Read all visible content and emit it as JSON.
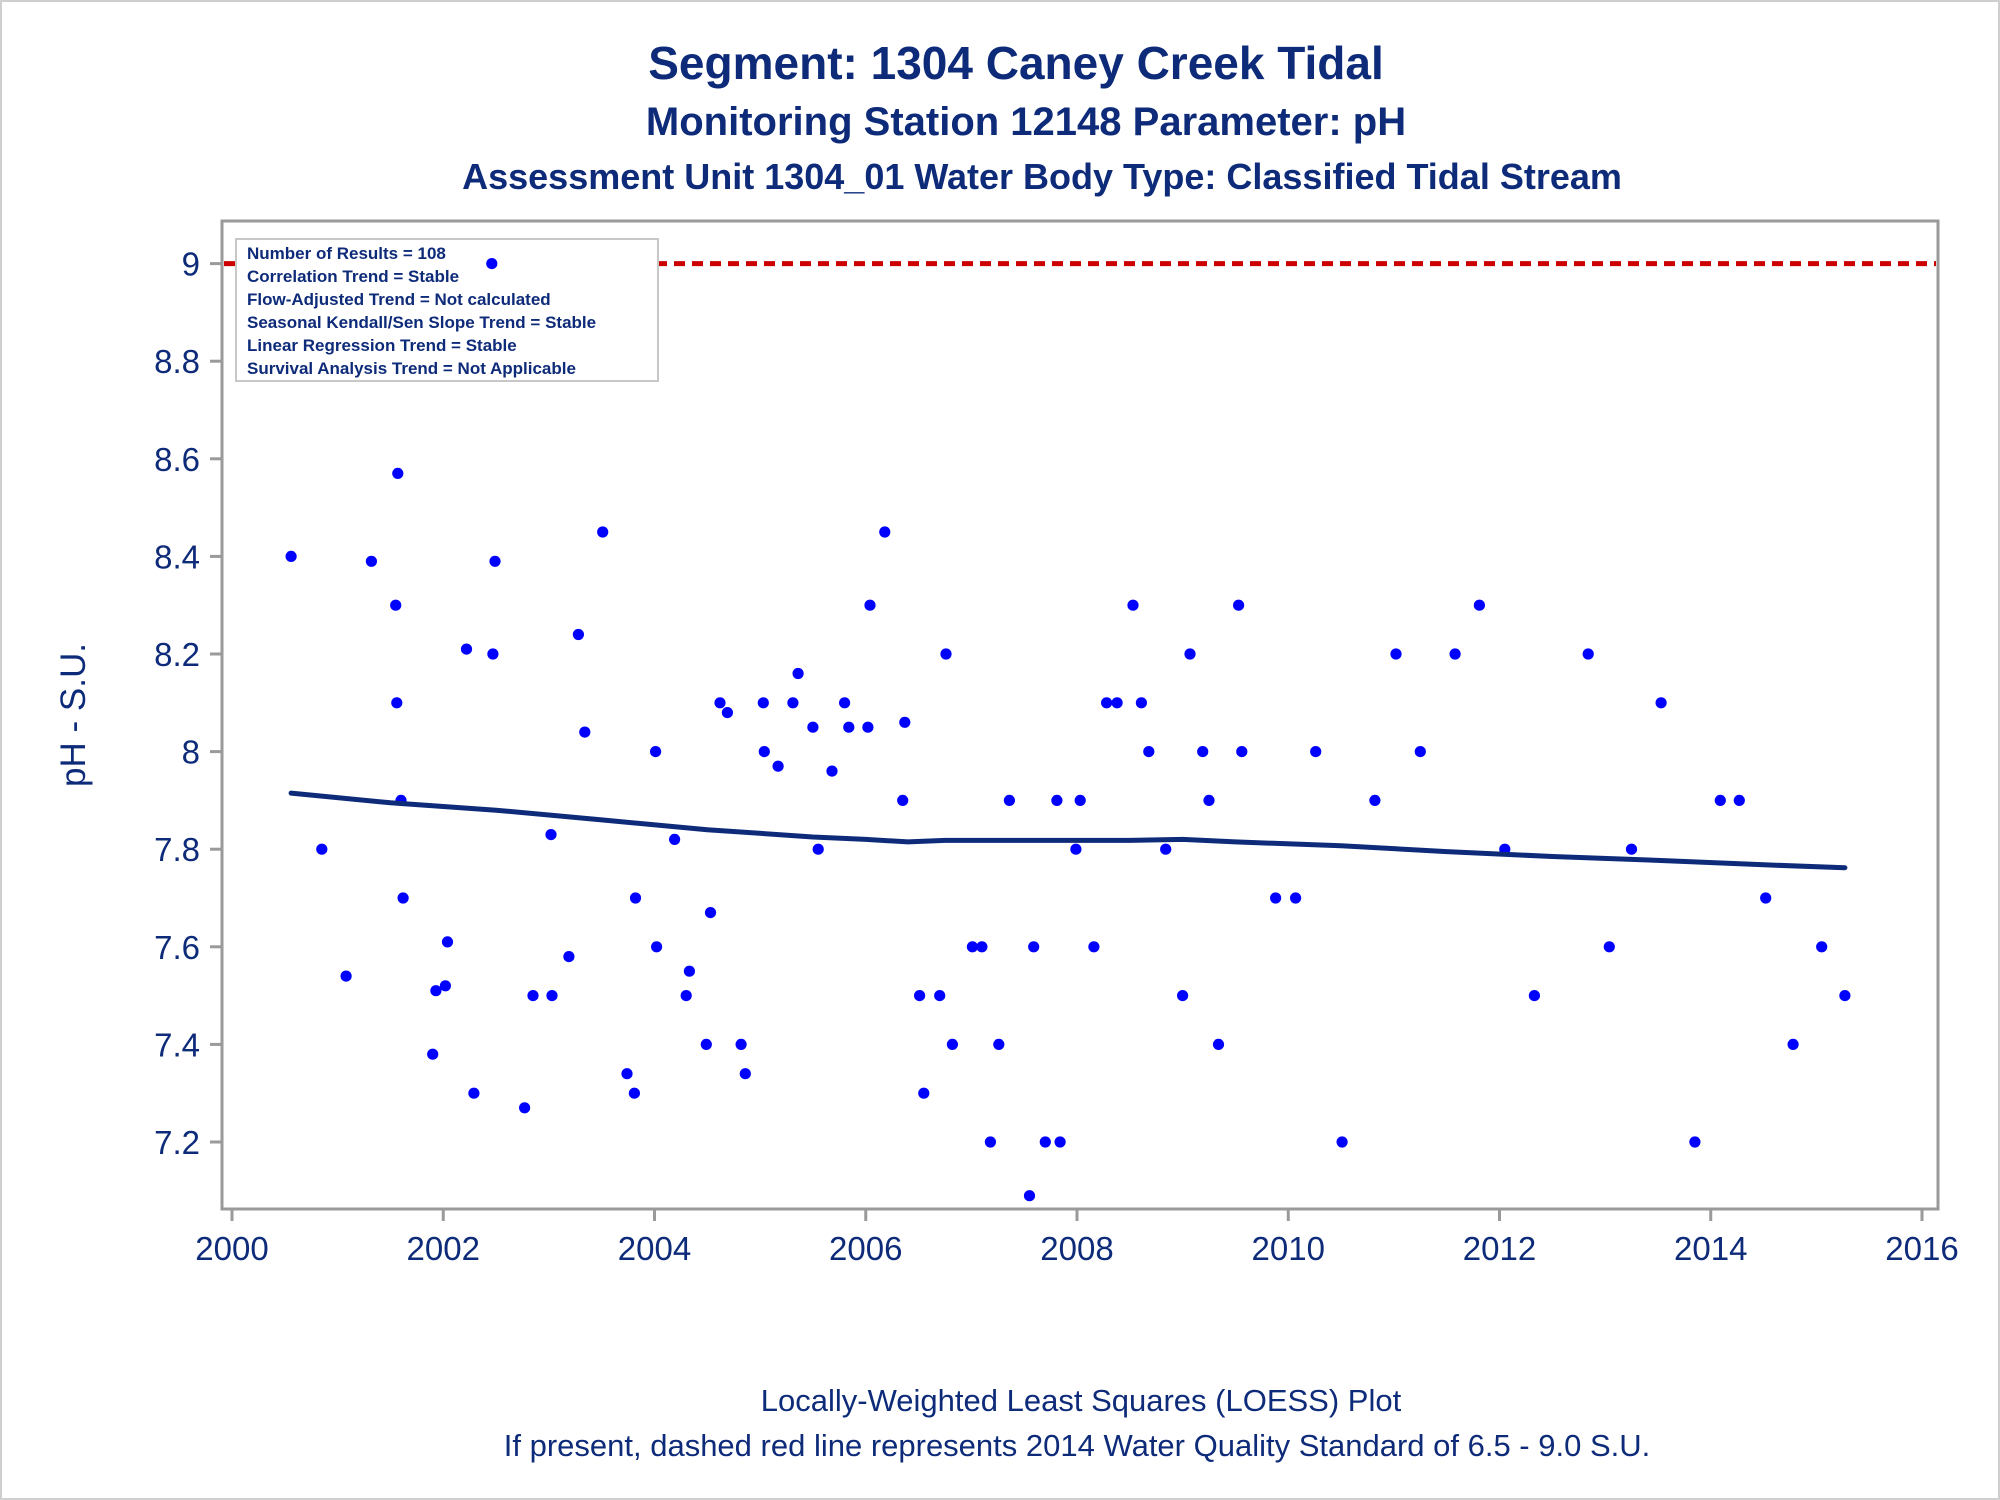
{
  "title": "Segment: 1304  Caney Creek Tidal",
  "subtitle": "Monitoring Station 12148 Parameter: pH",
  "subtitle2": "Assessment Unit 1304_01   Water Body Type: Classified Tidal Stream",
  "footnotes": [
    "Locally-Weighted Least Squares (LOESS) Plot",
    "If present, dashed red line represents 2014 Water Quality Standard of 6.5 - 9.0 S.U."
  ],
  "chart_data": {
    "type": "scatter",
    "ylabel": "pH - S.U.",
    "xlabel": "",
    "xlim": [
      2000,
      2016
    ],
    "ylim": [
      7.09,
      9.0
    ],
    "xticks": [
      2000,
      2002,
      2004,
      2006,
      2008,
      2010,
      2012,
      2014,
      2016
    ],
    "yticks": [
      7.2,
      7.4,
      7.6,
      7.8,
      8,
      8.2,
      8.4,
      8.6,
      8.8,
      9
    ],
    "grid": false,
    "reference_line": {
      "y": 9.0,
      "style": "dashed",
      "color": "#cc0000"
    },
    "annotations": [
      "Number of Results = 108",
      "Correlation Trend = Stable",
      "Flow-Adjusted Trend = Not calculated",
      "Seasonal Kendall/Sen Slope Trend = Stable",
      "Linear Regression Trend = Stable",
      "Survival Analysis Trend = Not Applicable"
    ],
    "annotation_placement": "top-left",
    "colors": {
      "points": "#0000ff",
      "loess": "#0e2b7a",
      "text": "#0e2b7a",
      "axis": "#9a9a9a"
    },
    "points": {
      "x": [
        2000.56,
        2000.85,
        2001.08,
        2001.32,
        2001.55,
        2001.56,
        2001.57,
        2001.6,
        2001.62,
        2001.9,
        2001.93,
        2002.02,
        2002.04,
        2002.22,
        2002.29,
        2002.46,
        2002.47,
        2002.49,
        2002.77,
        2002.85,
        2003.02,
        2003.03,
        2003.19,
        2003.28,
        2003.34,
        2003.51,
        2003.74,
        2003.81,
        2003.82,
        2004.01,
        2004.02,
        2004.19,
        2004.3,
        2004.33,
        2004.49,
        2004.53,
        2004.62,
        2004.69,
        2004.82,
        2004.86,
        2005.03,
        2005.04,
        2005.17,
        2005.31,
        2005.36,
        2005.5,
        2005.55,
        2005.68,
        2005.8,
        2005.84,
        2006.02,
        2006.04,
        2006.18,
        2006.35,
        2006.37,
        2006.51,
        2006.55,
        2006.7,
        2006.76,
        2006.82,
        2007.01,
        2007.1,
        2007.18,
        2007.26,
        2007.36,
        2007.55,
        2007.59,
        2007.7,
        2007.81,
        2007.84,
        2007.99,
        2008.03,
        2008.16,
        2008.28,
        2008.38,
        2008.53,
        2008.61,
        2008.68,
        2008.84,
        2009.0,
        2009.07,
        2009.19,
        2009.25,
        2009.34,
        2009.53,
        2009.56,
        2009.88,
        2010.07,
        2010.26,
        2010.51,
        2010.82,
        2011.02,
        2011.25,
        2011.58,
        2011.81,
        2012.05,
        2012.33,
        2012.84,
        2013.04,
        2013.25,
        2013.53,
        2013.85,
        2014.09,
        2014.27,
        2014.52,
        2014.78,
        2015.05,
        2015.27
      ],
      "y": [
        8.4,
        7.8,
        7.54,
        8.39,
        8.3,
        8.1,
        8.57,
        7.9,
        7.7,
        7.38,
        7.51,
        7.52,
        7.61,
        8.21,
        7.3,
        9.0,
        8.2,
        8.39,
        7.27,
        7.5,
        7.83,
        7.5,
        7.58,
        8.24,
        8.04,
        8.45,
        7.34,
        7.3,
        7.7,
        8.0,
        7.6,
        7.82,
        7.5,
        7.55,
        7.4,
        7.67,
        8.1,
        8.08,
        7.4,
        7.34,
        8.1,
        8.0,
        7.97,
        8.1,
        8.16,
        8.05,
        7.8,
        7.96,
        8.1,
        8.05,
        8.05,
        8.3,
        8.45,
        7.9,
        8.06,
        7.5,
        7.3,
        7.5,
        8.2,
        7.4,
        7.6,
        7.6,
        7.2,
        7.4,
        7.9,
        7.09,
        7.6,
        7.2,
        7.9,
        7.2,
        7.8,
        7.9,
        7.6,
        8.1,
        8.1,
        8.3,
        8.1,
        8.0,
        7.8,
        7.5,
        8.2,
        8.0,
        7.9,
        7.4,
        8.3,
        8.0,
        7.7,
        7.7,
        8.0,
        7.2,
        7.9,
        8.2,
        8.0,
        8.2,
        8.3,
        7.8,
        7.5,
        8.2,
        7.6,
        7.8,
        8.1,
        7.2,
        7.9,
        7.9,
        7.7,
        7.4,
        7.6,
        7.5
      ]
    },
    "loess": {
      "x": [
        2000.56,
        2001.5,
        2002.5,
        2003.5,
        2004.5,
        2005.5,
        2006.0,
        2006.4,
        2006.75,
        2007.5,
        2008.5,
        2009.0,
        2009.5,
        2010.5,
        2011.5,
        2012.5,
        2013.5,
        2014.5,
        2015.27
      ],
      "y": [
        7.915,
        7.895,
        7.88,
        7.86,
        7.84,
        7.825,
        7.82,
        7.815,
        7.818,
        7.818,
        7.818,
        7.82,
        7.815,
        7.807,
        7.795,
        7.785,
        7.777,
        7.768,
        7.762
      ]
    }
  }
}
